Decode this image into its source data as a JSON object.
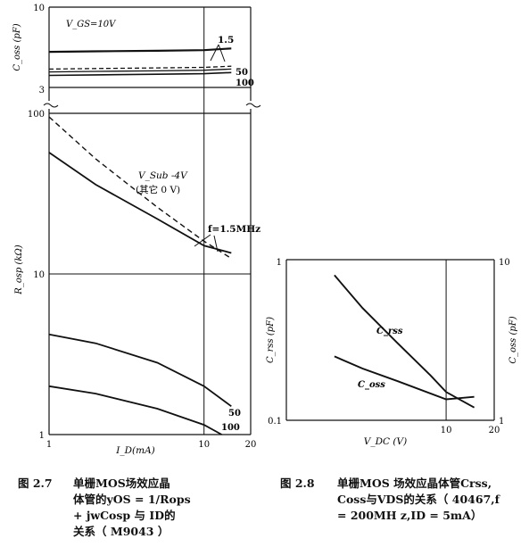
{
  "chart_data": [
    {
      "id": "fig-2-7-top",
      "type": "line",
      "ylabel": "C_oss (pF)",
      "ylim": [
        3,
        10
      ],
      "yticks": [
        "10",
        "3"
      ],
      "condition": "V_GS=10V",
      "series": [
        {
          "label": "1.5",
          "x": [
            1,
            2,
            5,
            10,
            15
          ],
          "y": [
            6.1,
            6.15,
            6.2,
            6.25,
            6.4
          ]
        },
        {
          "label": "50",
          "x": [
            1,
            2,
            5,
            10,
            15
          ],
          "y": [
            4.6,
            4.65,
            4.7,
            4.75,
            4.85
          ]
        },
        {
          "label": "",
          "x": [
            1,
            2,
            5,
            10,
            15
          ],
          "y": [
            4.35,
            4.4,
            4.45,
            4.5,
            4.6
          ]
        },
        {
          "label": "100",
          "x": [
            1,
            2,
            5,
            10,
            15
          ],
          "y": [
            4.05,
            4.1,
            4.15,
            4.2,
            4.3
          ]
        }
      ]
    },
    {
      "id": "fig-2-7-bottom",
      "type": "line",
      "xscale": "log",
      "yscale": "log",
      "xlabel": "I_D(mA)",
      "ylabel": "R_osp (kΩ)",
      "xlim": [
        1,
        20
      ],
      "ylim": [
        1,
        100
      ],
      "xticks": [
        "1",
        "10",
        "20"
      ],
      "yticks": [
        "100",
        "10",
        "1"
      ],
      "annotation_bias": "V_Sub -4V",
      "annotation_other": "(其它 0 V)",
      "annotation_freq": "f=1.5MHz",
      "series": [
        {
          "label": "1.5MHz dashed",
          "style": "dashed",
          "x": [
            1,
            2,
            5,
            10,
            15
          ],
          "y": [
            95,
            52,
            26,
            16,
            12.5
          ]
        },
        {
          "label": "1.5MHz solid",
          "style": "solid",
          "x": [
            1,
            2,
            5,
            10,
            15
          ],
          "y": [
            57,
            36,
            22,
            15,
            13.5
          ]
        },
        {
          "label": "50",
          "style": "solid",
          "x": [
            1,
            2,
            5,
            10,
            15
          ],
          "y": [
            4.2,
            3.7,
            2.8,
            2.0,
            1.5
          ]
        },
        {
          "label": "100",
          "style": "solid",
          "x": [
            1,
            2,
            5,
            10,
            13
          ],
          "y": [
            2.0,
            1.8,
            1.45,
            1.15,
            1.0
          ]
        }
      ]
    },
    {
      "id": "fig-2-8",
      "type": "line",
      "xscale": "log",
      "yscale": "log",
      "xlabel": "V_DC (V)",
      "ylabel_left": "C_rss (pF)",
      "ylabel_right": "C_oss (pF)",
      "xlim": [
        1,
        20
      ],
      "ylim_left": [
        0.1,
        1
      ],
      "ylim_right": [
        1,
        10
      ],
      "xticks": [
        "10",
        "20"
      ],
      "yticks_left": [
        "1",
        "0.1"
      ],
      "yticks_right": [
        "10",
        "1"
      ],
      "series": [
        {
          "label": "C_rss",
          "axis": "left",
          "x": [
            2,
            3,
            5,
            8,
            10,
            15
          ],
          "y": [
            0.8,
            0.5,
            0.3,
            0.19,
            0.15,
            0.12
          ]
        },
        {
          "label": "C_oss",
          "axis": "right",
          "x": [
            2,
            3,
            5,
            10,
            15
          ],
          "y": [
            2.5,
            2.1,
            1.75,
            1.35,
            1.4
          ]
        }
      ]
    }
  ],
  "captions": {
    "left": {
      "num": "图 2.7",
      "lines": [
        "单栅MOS场效应晶",
        "体管的yOS = 1/Rops",
        "+ jwCosp 与 ID的",
        "关系（ M9043 ）"
      ]
    },
    "right": {
      "num": "图 2.8",
      "lines": [
        "单栅MOS 场效应晶体管Crss,",
        "Coss与VDS的关系（ 40467,f",
        "= 200MH z,ID = 5mA）"
      ]
    }
  }
}
